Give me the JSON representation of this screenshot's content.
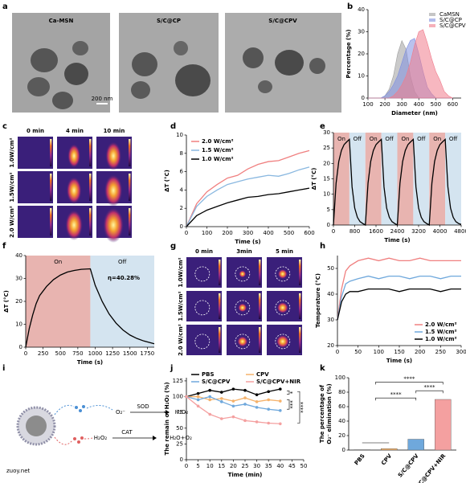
{
  "panel_labels": [
    "a",
    "b",
    "c",
    "d",
    "e",
    "f",
    "g",
    "h",
    "i",
    "j",
    "k"
  ],
  "tem": {
    "labels": [
      "Ca-MSN",
      "S/C@CP",
      "S/C@CPV"
    ],
    "scale_bar": "200 nm"
  },
  "thermal_c": {
    "columns": [
      "0 min",
      "4 min",
      "10 min"
    ],
    "rows": [
      "1.0W/cm²",
      "1.5W/cm²",
      "2.0 W/cm²"
    ],
    "row_colors": [
      "#000000",
      "#6fa8dc",
      "#e06666"
    ]
  },
  "thermal_g": {
    "columns": [
      "0 min",
      "3min",
      "5 min"
    ],
    "rows": [
      "1.0W/cm²",
      "1.5W/cm²",
      "2.0 W/cm²"
    ],
    "row_colors": [
      "#000000",
      "#6fa8dc",
      "#e06666"
    ]
  },
  "scheme": {
    "superoxide": "O₂⁻",
    "sod": "SOD",
    "h2o2_product": "H₂O₂",
    "cat": "CAT",
    "h2o2_substrate": "H₂O₂",
    "products": "H₂O+O₂"
  },
  "watermark": "zuoy.net",
  "chart_data": [
    {
      "type": "area",
      "xlabel": "Diameter (nm)",
      "ylabel": "Percentage (%)",
      "x": [
        100,
        125,
        150,
        175,
        200,
        225,
        250,
        275,
        300,
        325,
        350,
        375,
        400,
        425,
        450,
        475,
        500,
        525,
        550,
        575,
        600
      ],
      "series": [
        {
          "name": "CaMSN",
          "color": "#9e9e9e",
          "values": [
            0,
            0,
            0,
            0,
            1,
            4,
            10,
            20,
            26,
            22,
            10,
            3,
            0,
            0,
            0,
            0,
            0,
            0,
            0,
            0,
            0
          ]
        },
        {
          "name": "S/C@CP",
          "color": "#7f8fe0",
          "values": [
            0,
            0,
            0,
            0,
            1,
            3,
            6,
            10,
            16,
            22,
            26,
            27,
            20,
            12,
            5,
            2,
            0,
            0,
            0,
            0,
            0
          ]
        },
        {
          "name": "S/C@CPV",
          "color": "#f07c8c",
          "values": [
            0,
            0,
            0,
            0,
            0,
            0,
            1,
            3,
            6,
            10,
            16,
            24,
            30,
            31,
            25,
            18,
            12,
            8,
            3,
            1,
            0
          ]
        }
      ],
      "xlim": [
        100,
        650
      ],
      "xticks": [
        100,
        200,
        300,
        400,
        500,
        600
      ],
      "ylim": [
        0,
        40
      ],
      "yticks": [
        0,
        10,
        20,
        30,
        40
      ],
      "legend": "upper right"
    },
    {
      "type": "line",
      "xlabel": "Time (s)",
      "ylabel": "ΔT (°C)",
      "x": [
        0,
        50,
        100,
        150,
        200,
        250,
        300,
        350,
        400,
        450,
        500,
        550,
        600
      ],
      "series": [
        {
          "name": "2.0 W/cm²",
          "color": "#f08080",
          "values": [
            0,
            2.5,
            3.8,
            4.6,
            5.3,
            5.6,
            6.3,
            6.8,
            7.1,
            7.2,
            7.6,
            8.0,
            8.3
          ]
        },
        {
          "name": "1.5 W/cm²",
          "color": "#8ab8e0",
          "values": [
            0,
            2.2,
            3.3,
            4.0,
            4.6,
            4.9,
            5.2,
            5.4,
            5.6,
            5.5,
            5.8,
            6.2,
            6.5
          ]
        },
        {
          "name": "1.0 W/cm²",
          "color": "#000000",
          "values": [
            0,
            1.2,
            1.8,
            2.2,
            2.6,
            2.9,
            3.2,
            3.3,
            3.5,
            3.6,
            3.8,
            4.0,
            4.2
          ]
        }
      ],
      "xlim": [
        0,
        600
      ],
      "xticks": [
        0,
        100,
        200,
        300,
        400,
        500,
        600
      ],
      "ylim": [
        0,
        10
      ],
      "yticks": [
        0,
        2,
        4,
        6,
        8,
        10
      ],
      "legend": "upper left"
    },
    {
      "type": "line",
      "xlabel": "Time (s)",
      "ylabel": "ΔT (°C)",
      "x": [
        0,
        100,
        200,
        300,
        400,
        500,
        600,
        700,
        800,
        900,
        1000,
        1100,
        1200,
        1300,
        1400,
        1500,
        1600,
        1700,
        1800,
        1900,
        2000,
        2100,
        2200,
        2300,
        2400,
        2500,
        2600,
        2700,
        2800,
        2900,
        3000,
        3100,
        3200,
        3300,
        3400,
        3500,
        3600,
        3700,
        3800,
        3900,
        4000,
        4100,
        4200,
        4300,
        4400,
        4500,
        4600,
        4700,
        4800
      ],
      "values": [
        0,
        13.6,
        20.6,
        24.2,
        26.1,
        27.0,
        27.8,
        12.4,
        5.5,
        2.5,
        1.1,
        0.5,
        0,
        13.6,
        20.6,
        24.2,
        26.1,
        27.0,
        27.8,
        12.4,
        5.5,
        2.5,
        1.1,
        0.5,
        0,
        13.6,
        20.6,
        24.2,
        26.1,
        27.0,
        27.8,
        12.4,
        5.5,
        2.5,
        1.1,
        0.5,
        0,
        13.6,
        20.6,
        24.2,
        26.1,
        27.0,
        27.8,
        12.4,
        5.5,
        2.5,
        1.1,
        0.5,
        0.2
      ],
      "color": "#000000",
      "regions": [
        {
          "label": "On",
          "start": 0,
          "end": 600,
          "color": "#e8b4b0"
        },
        {
          "label": "Off",
          "start": 600,
          "end": 1200,
          "color": "#d4e4f0"
        },
        {
          "label": "On",
          "start": 1200,
          "end": 1800,
          "color": "#e8b4b0"
        },
        {
          "label": "Off",
          "start": 1800,
          "end": 2400,
          "color": "#d4e4f0"
        },
        {
          "label": "On",
          "start": 2400,
          "end": 3000,
          "color": "#e8b4b0"
        },
        {
          "label": "Off",
          "start": 3000,
          "end": 3600,
          "color": "#d4e4f0"
        },
        {
          "label": "On",
          "start": 3600,
          "end": 4200,
          "color": "#e8b4b0"
        },
        {
          "label": "Off",
          "start": 4200,
          "end": 4800,
          "color": "#d4e4f0"
        }
      ],
      "xlim": [
        0,
        4800
      ],
      "xticks": [
        0,
        800,
        1600,
        2400,
        3200,
        4000,
        4800
      ],
      "ylim": [
        0,
        30
      ],
      "yticks": [
        0,
        5,
        10,
        15,
        20,
        25,
        30
      ]
    },
    {
      "type": "line",
      "xlabel": "Time (s)",
      "ylabel": "ΔT (°C)",
      "x": [
        0,
        50,
        100,
        150,
        200,
        300,
        400,
        500,
        600,
        700,
        800,
        930,
        1000,
        1100,
        1200,
        1300,
        1400,
        1500,
        1600,
        1700,
        1850
      ],
      "values": [
        0,
        8,
        14,
        19,
        22.5,
        26.5,
        29.5,
        31.5,
        32.8,
        33.5,
        34,
        34.2,
        27,
        20,
        14.5,
        10.5,
        7.5,
        5.3,
        3.8,
        2.7,
        1.5
      ],
      "color": "#000000",
      "regions": [
        {
          "label": "On",
          "start": 0,
          "end": 930,
          "color": "#e8b4b0"
        },
        {
          "label": "Off",
          "start": 930,
          "end": 1850,
          "color": "#d4e4f0"
        }
      ],
      "annotations": [
        "η=40.28%"
      ],
      "xlim": [
        0,
        1850
      ],
      "xticks": [
        0,
        250,
        500,
        750,
        1000,
        1250,
        1500,
        1750
      ],
      "ylim": [
        0,
        40
      ],
      "yticks": [
        0,
        10,
        20,
        30,
        40
      ]
    },
    {
      "type": "line",
      "xlabel": "Time (s)",
      "ylabel": "Temperature (°C)",
      "x": [
        0,
        10,
        20,
        30,
        50,
        75,
        100,
        125,
        150,
        175,
        200,
        225,
        250,
        275,
        300
      ],
      "series": [
        {
          "name": "2.0 W/cm²",
          "color": "#f08080",
          "values": [
            30,
            42,
            49,
            51,
            53,
            54,
            53,
            54,
            53,
            53,
            54,
            53,
            53,
            53,
            53
          ]
        },
        {
          "name": "1.5 W/cm²",
          "color": "#6fa8dc",
          "values": [
            30,
            39,
            44,
            45,
            46,
            47,
            46,
            47,
            47,
            46,
            47,
            47,
            46,
            47,
            47
          ]
        },
        {
          "name": "1.0 W/cm²",
          "color": "#000000",
          "values": [
            30,
            37,
            40,
            41,
            41,
            42,
            42,
            42,
            41,
            42,
            42,
            42,
            41,
            42,
            42
          ]
        }
      ],
      "xlim": [
        0,
        300
      ],
      "xticks": [
        0,
        50,
        100,
        150,
        200,
        250,
        300
      ],
      "ylim": [
        20,
        55
      ],
      "yticks": [
        20,
        30,
        40,
        50
      ],
      "legend": "lower right"
    },
    {
      "type": "line",
      "markers": true,
      "xlabel": "Time (min)",
      "ylabel": "The remain of H₂O₂ (%)",
      "x": [
        0,
        5,
        10,
        15,
        20,
        25,
        30,
        35,
        40
      ],
      "series": [
        {
          "name": "PBS",
          "color": "#000000",
          "values": [
            100,
            105,
            110,
            107,
            112,
            110,
            103,
            108,
            112
          ]
        },
        {
          "name": "CPV",
          "color": "#f5b26b",
          "values": [
            100,
            100,
            95,
            97,
            93,
            98,
            92,
            95,
            93
          ]
        },
        {
          "name": "S/C@CPV",
          "color": "#6fa8dc",
          "values": [
            100,
            95,
            100,
            92,
            85,
            88,
            83,
            80,
            78
          ]
        },
        {
          "name": "S/C@CPV+NIR",
          "color": "#f4a0a0",
          "values": [
            100,
            85,
            72,
            65,
            68,
            62,
            60,
            58,
            57
          ]
        }
      ],
      "annotations": [
        "*",
        "***",
        "****"
      ],
      "xlim": [
        0,
        50
      ],
      "xticks": [
        0,
        5,
        10,
        15,
        20,
        25,
        30,
        35,
        40,
        45,
        50
      ],
      "ylim": [
        0,
        130
      ],
      "yticks": [
        0,
        25,
        50,
        75,
        100,
        125
      ],
      "legend": "upper center"
    },
    {
      "type": "bar",
      "ylabel": [
        "The percentage of",
        "O₂⁻ elimination (%)"
      ],
      "categories": [
        "PBS",
        "CPV",
        "S/C@CPV",
        "S/C@CPV+NIR"
      ],
      "values": [
        0.5,
        2,
        15,
        70
      ],
      "colors": [
        "#9e9e9e",
        "#f5b26b",
        "#6fa8dc",
        "#f4a0a0"
      ],
      "annotations": [
        "****",
        "****",
        "****"
      ],
      "ylim": [
        0,
        100
      ],
      "yticks": [
        0,
        20,
        40,
        60,
        80,
        100
      ]
    }
  ]
}
